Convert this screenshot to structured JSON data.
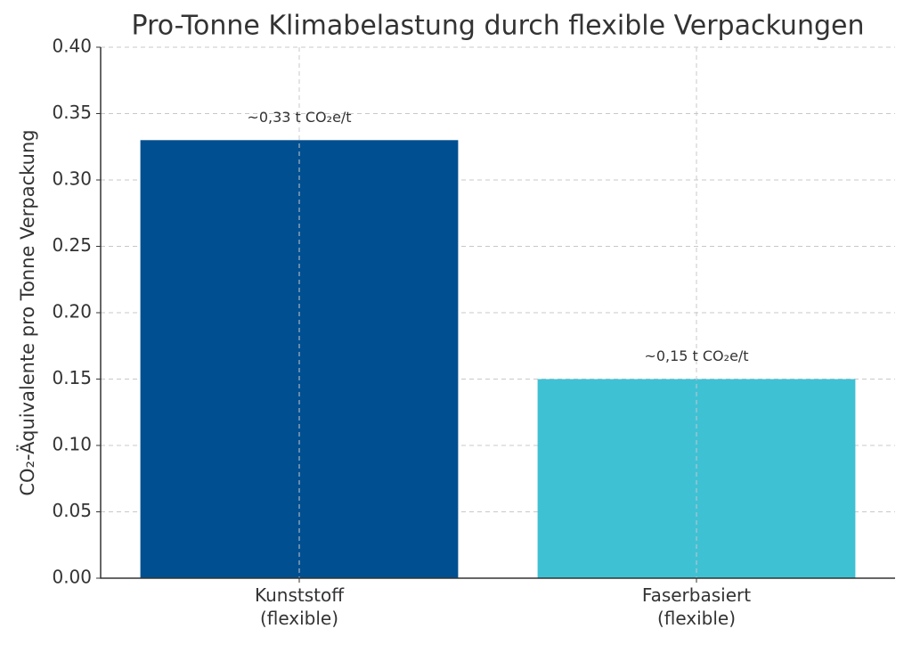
{
  "chart_data": {
    "type": "bar",
    "title": "Pro-Tonne Klimabelastung durch flexible Verpackungen",
    "y_label": "CO₂-Äquivalente pro Tonne Verpackung",
    "categories": [
      "Kunststoff\n(flexible)",
      "Faserbasiert\n(flexible)"
    ],
    "values": [
      0.33,
      0.15
    ],
    "value_labels": [
      "~0,33 t CO₂e/t",
      "~0,15 t CO₂e/t"
    ],
    "colors": [
      "#004f91",
      "#3fc1d4"
    ],
    "ylim": [
      0,
      0.4
    ],
    "yticks": [
      {
        "value": 0,
        "label": "0.00"
      },
      {
        "value": 0.05,
        "label": "0.05"
      },
      {
        "value": 0.1,
        "label": "0.10"
      },
      {
        "value": 0.15,
        "label": "0.15"
      },
      {
        "value": 0.2,
        "label": "0.20"
      },
      {
        "value": 0.25,
        "label": "0.25"
      },
      {
        "value": 0.3,
        "label": "0.30"
      },
      {
        "value": 0.35,
        "label": "0.35"
      },
      {
        "value": 0.4,
        "label": "0.40"
      }
    ],
    "grid": true
  }
}
